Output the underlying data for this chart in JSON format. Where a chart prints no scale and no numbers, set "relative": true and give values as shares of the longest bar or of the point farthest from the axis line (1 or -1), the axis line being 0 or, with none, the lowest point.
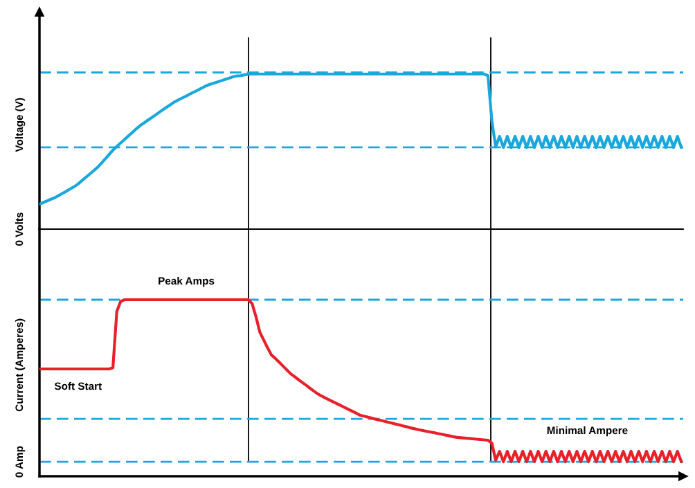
{
  "chart_data": [
    {
      "type": "line",
      "relative": true,
      "ylabel": "Voltage (V)",
      "marker": "none",
      "line_style": "solid",
      "categories": [
        null,
        null,
        null,
        null,
        null,
        null,
        null,
        null,
        null,
        null,
        null,
        null,
        null,
        null,
        null,
        null,
        null,
        null,
        null,
        null,
        null,
        null,
        null,
        null,
        null,
        null,
        null,
        null,
        null,
        null,
        null,
        null,
        null,
        null,
        null,
        null,
        null,
        null,
        null,
        null,
        null,
        null,
        null,
        null,
        null,
        null,
        null,
        null,
        null,
        null,
        null,
        null,
        null,
        null,
        null,
        null,
        null,
        null,
        null,
        null,
        null,
        null,
        null,
        null,
        null,
        null,
        null,
        null,
        null,
        null,
        null,
        null,
        null,
        null,
        null,
        null,
        null,
        null,
        null,
        null,
        null,
        null,
        null,
        null,
        null,
        null,
        null,
        null,
        null,
        null,
        null,
        null,
        null,
        null,
        null,
        null,
        null,
        null,
        null,
        null,
        null,
        null,
        null,
        null,
        null,
        null,
        null,
        null,
        null,
        null,
        null,
        null,
        null,
        null,
        null,
        null,
        null,
        null,
        null,
        null,
        null,
        null,
        null,
        null,
        null,
        null,
        null,
        null,
        null,
        null,
        null,
        null,
        null,
        null,
        null,
        null,
        null,
        null,
        null,
        null,
        null,
        null,
        null,
        null,
        null,
        null,
        null,
        null,
        null,
        null,
        null,
        null,
        null,
        null,
        null,
        null,
        null,
        null,
        null,
        null,
        null,
        null,
        null,
        null,
        null,
        null,
        null
      ],
      "series": [
        {
          "color": "#1aa7dc",
          "values": [
            0.161,
            0.172,
            0.182,
            0.193,
            0.203,
            0.217,
            0.231,
            0.245,
            0.26,
            0.274,
            0.292,
            0.313,
            0.334,
            0.355,
            0.376,
            0.398,
            0.425,
            0.453,
            0.481,
            0.509,
            0.533,
            0.556,
            0.578,
            0.601,
            0.623,
            0.646,
            0.667,
            0.684,
            0.702,
            0.719,
            0.736,
            0.754,
            0.771,
            0.788,
            0.805,
            0.821,
            0.834,
            0.847,
            0.859,
            0.872,
            0.885,
            0.897,
            0.91,
            0.923,
            0.933,
            0.941,
            0.949,
            0.957,
            0.965,
            0.973,
            0.982,
            0.988,
            0.99,
            0.995,
            0.999,
            1.0,
            1.0,
            1.0,
            1.0,
            1.0,
            1.0,
            1.0,
            1.0,
            1.0,
            1.0,
            1.0,
            1.0,
            1.0,
            1.0,
            1.0,
            1.0,
            1.0,
            1.0,
            1.0,
            1.0,
            1.0,
            1.0,
            1.0,
            1.0,
            1.0,
            1.0,
            1.0,
            1.0,
            1.0,
            1.0,
            1.0,
            1.0,
            1.0,
            1.0,
            1.0,
            1.0,
            1.0,
            1.0,
            1.0,
            1.0,
            1.0,
            1.0,
            1.0,
            1.0,
            1.0,
            1.0,
            1.0,
            1.0,
            1.0,
            1.0,
            1.0,
            1.0,
            1.0,
            1.0,
            1.0,
            1.0,
            1.0,
            1.0,
            1.0,
            1.0,
            1.0,
            0.99,
            0.7,
            0.53,
            0.598,
            0.527,
            0.598,
            0.527,
            0.598,
            0.527,
            0.598,
            0.527,
            0.598,
            0.527,
            0.598,
            0.527,
            0.598,
            0.527,
            0.598,
            0.527,
            0.598,
            0.527,
            0.598,
            0.527,
            0.598,
            0.527,
            0.598,
            0.527,
            0.598,
            0.527,
            0.598,
            0.527,
            0.598,
            0.527,
            0.598,
            0.527,
            0.598,
            0.527,
            0.598,
            0.527,
            0.598,
            0.527,
            0.598,
            0.527,
            0.598,
            0.527,
            0.598,
            0.527,
            0.598,
            0.527,
            0.598,
            0.527
          ]
        }
      ],
      "ref_lines": [
        {
          "axis": "y",
          "value": 1.01,
          "color": "#1aa7dc",
          "line_style": "dashed"
        },
        {
          "axis": "y",
          "value": 0.527,
          "color": "#1aa7dc",
          "line_style": "dashed"
        }
      ],
      "annotations": [
        "0 Volts"
      ]
    },
    {
      "type": "line",
      "relative": true,
      "ylabel": "Current (Amperes)",
      "marker": "none",
      "line_style": "solid",
      "categories": [
        null,
        null,
        null,
        null,
        null,
        null,
        null,
        null,
        null,
        null,
        null,
        null,
        null,
        null,
        null,
        null,
        null,
        null,
        null,
        null,
        null,
        null,
        null,
        null,
        null,
        null,
        null,
        null,
        null,
        null,
        null,
        null,
        null,
        null,
        null,
        null,
        null,
        null,
        null,
        null,
        null,
        null,
        null,
        null,
        null,
        null,
        null,
        null,
        null,
        null,
        null,
        null,
        null,
        null,
        null,
        null,
        null,
        null,
        null,
        null,
        null,
        null,
        null,
        null,
        null,
        null,
        null,
        null,
        null,
        null,
        null,
        null,
        null,
        null,
        null,
        null,
        null,
        null,
        null,
        null,
        null,
        null,
        null,
        null,
        null,
        null,
        null,
        null,
        null,
        null,
        null,
        null,
        null,
        null,
        null,
        null,
        null,
        null,
        null,
        null,
        null,
        null,
        null,
        null,
        null,
        null,
        null,
        null,
        null,
        null,
        null,
        null,
        null,
        null,
        null,
        null,
        null,
        null,
        null,
        null,
        null,
        null,
        null,
        null,
        null,
        null,
        null,
        null,
        null,
        null,
        null,
        null,
        null,
        null,
        null,
        null,
        null,
        null,
        null,
        null,
        null,
        null,
        null,
        null,
        null,
        null,
        null,
        null,
        null,
        null,
        null,
        null,
        null,
        null,
        null,
        null,
        null,
        null,
        null,
        null,
        null,
        null,
        null,
        null,
        null,
        null,
        null
      ],
      "series": [
        {
          "color": "#e8202a",
          "values": [
            0.608,
            0.608,
            0.608,
            0.608,
            0.608,
            0.608,
            0.608,
            0.608,
            0.608,
            0.608,
            0.608,
            0.608,
            0.608,
            0.608,
            0.608,
            0.608,
            0.608,
            0.608,
            0.608,
            0.615,
            0.933,
            0.99,
            1.0,
            1.0,
            1.0,
            1.0,
            1.0,
            1.0,
            1.0,
            1.0,
            1.0,
            1.0,
            1.0,
            1.0,
            1.0,
            1.0,
            1.0,
            1.0,
            1.0,
            1.0,
            1.0,
            1.0,
            1.0,
            1.0,
            1.0,
            1.0,
            1.0,
            1.0,
            1.0,
            1.0,
            1.0,
            1.0,
            1.0,
            1.0,
            1.0,
            0.978,
            0.904,
            0.816,
            0.772,
            0.727,
            0.687,
            0.668,
            0.646,
            0.624,
            0.602,
            0.58,
            0.564,
            0.547,
            0.531,
            0.515,
            0.498,
            0.482,
            0.466,
            0.454,
            0.443,
            0.432,
            0.421,
            0.41,
            0.4,
            0.389,
            0.378,
            0.367,
            0.356,
            0.345,
            0.34,
            0.334,
            0.329,
            0.323,
            0.318,
            0.313,
            0.307,
            0.302,
            0.296,
            0.291,
            0.285,
            0.28,
            0.274,
            0.269,
            0.264,
            0.26,
            0.255,
            0.251,
            0.247,
            0.242,
            0.238,
            0.233,
            0.229,
            0.224,
            0.22,
            0.218,
            0.216,
            0.214,
            0.212,
            0.21,
            0.208,
            0.206,
            0.204,
            0.188,
            0.09,
            0.141,
            0.082,
            0.141,
            0.082,
            0.141,
            0.082,
            0.141,
            0.082,
            0.141,
            0.082,
            0.141,
            0.082,
            0.141,
            0.082,
            0.141,
            0.082,
            0.141,
            0.082,
            0.141,
            0.082,
            0.141,
            0.082,
            0.141,
            0.082,
            0.141,
            0.082,
            0.141,
            0.082,
            0.141,
            0.082,
            0.141,
            0.082,
            0.141,
            0.082,
            0.141,
            0.082,
            0.141,
            0.082,
            0.141,
            0.082,
            0.141,
            0.082,
            0.141,
            0.082,
            0.141,
            0.082,
            0.141,
            0.082
          ]
        }
      ],
      "ref_lines": [
        {
          "axis": "y",
          "value": 1.0,
          "color": "#1aa7dc",
          "line_style": "dashed"
        },
        {
          "axis": "y",
          "value": 0.325,
          "color": "#1aa7dc",
          "line_style": "dashed"
        },
        {
          "axis": "y",
          "value": 0.082,
          "label": "0 Amp",
          "color": "#1aa7dc",
          "line_style": "dashed"
        }
      ],
      "annotations": [
        "Peak Amps",
        "Soft Start",
        "Minimal Ampere"
      ]
    }
  ]
}
